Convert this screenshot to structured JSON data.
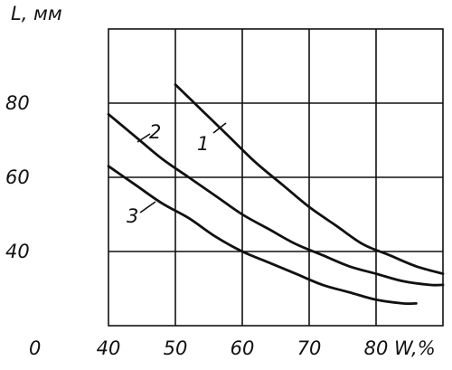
{
  "chart_data": {
    "type": "line",
    "ylabel": "L, мм",
    "xlabel": "W,%",
    "xlim": [
      40,
      90
    ],
    "ylim": [
      20,
      100
    ],
    "grid": true,
    "x_origin_label": "0",
    "xticks": [
      "40",
      "50",
      "60",
      "70",
      "80"
    ],
    "yticks": [
      "40",
      "60",
      "80"
    ],
    "series": [
      {
        "name": "1",
        "points": [
          [
            50,
            85
          ],
          [
            54,
            78
          ],
          [
            58,
            71
          ],
          [
            62,
            64
          ],
          [
            66,
            58
          ],
          [
            70,
            52
          ],
          [
            74,
            47
          ],
          [
            78,
            42
          ],
          [
            82,
            39
          ],
          [
            86,
            36
          ],
          [
            90,
            34
          ]
        ]
      },
      {
        "name": "2",
        "points": [
          [
            40,
            77
          ],
          [
            44,
            71
          ],
          [
            48,
            65
          ],
          [
            52,
            60
          ],
          [
            56,
            55
          ],
          [
            60,
            50
          ],
          [
            64,
            46
          ],
          [
            68,
            42
          ],
          [
            72,
            39
          ],
          [
            76,
            36
          ],
          [
            80,
            34
          ],
          [
            84,
            32
          ],
          [
            88,
            31
          ],
          [
            90,
            31
          ]
        ]
      },
      {
        "name": "3",
        "points": [
          [
            40,
            63
          ],
          [
            44,
            58
          ],
          [
            48,
            53
          ],
          [
            52,
            49
          ],
          [
            56,
            44
          ],
          [
            60,
            40
          ],
          [
            64,
            37
          ],
          [
            68,
            34
          ],
          [
            72,
            31
          ],
          [
            76,
            29
          ],
          [
            80,
            27
          ],
          [
            84,
            26
          ],
          [
            86,
            26
          ]
        ]
      }
    ]
  }
}
